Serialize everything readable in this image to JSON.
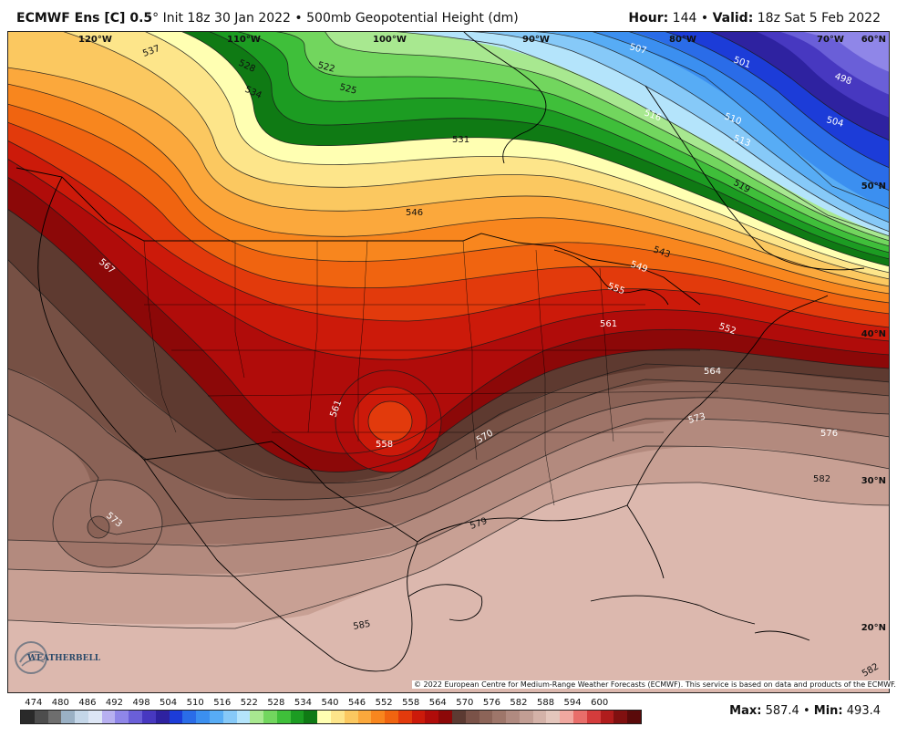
{
  "header": {
    "model": "ECMWF Ens [C] 0.5",
    "degree_mark": "°",
    "init": "Init 18z 30 Jan 2022",
    "separator": "•",
    "product": "500mb Geopotential Height (dm)",
    "hour_label": "Hour:",
    "hour_value": "144",
    "valid_label": "Valid:",
    "valid_value": "18z Sat 5 Feb 2022"
  },
  "lon_labels": [
    "120°W",
    "110°W",
    "100°W",
    "90°W",
    "80°W",
    "70°W"
  ],
  "lat_labels": [
    "60°N",
    "50°N",
    "40°N",
    "30°N",
    "20°N"
  ],
  "contour_labels": [
    "537",
    "528",
    "534",
    "522",
    "525",
    "507",
    "501",
    "498",
    "504",
    "510",
    "516",
    "513",
    "519",
    "531",
    "546",
    "543",
    "549",
    "555",
    "561",
    "567",
    "561",
    "558",
    "570",
    "573",
    "576",
    "582",
    "579",
    "585",
    "564",
    "552",
    "573",
    "582"
  ],
  "legend": {
    "values": [
      "474",
      "480",
      "486",
      "492",
      "498",
      "504",
      "510",
      "516",
      "522",
      "528",
      "534",
      "540",
      "546",
      "552",
      "558",
      "564",
      "570",
      "576",
      "582",
      "588",
      "594",
      "600"
    ],
    "colors": [
      "#2a2a2a",
      "#4d4d4d",
      "#6e6e6e",
      "#9ab0c4",
      "#c4d6e8",
      "#dde6f5",
      "#b7b0f0",
      "#8f86e8",
      "#6a5fd8",
      "#4738c0",
      "#2e22a0",
      "#1c3cd8",
      "#2a6ce8",
      "#3b8ff0",
      "#57acf5",
      "#86c9f8",
      "#b4e4fb",
      "#a8e890",
      "#72d65e",
      "#3fbf3a",
      "#1c9c22",
      "#0f7a14",
      "#ffffb2",
      "#fde58a",
      "#fbc860",
      "#fba83c",
      "#f8861e",
      "#f06410",
      "#e23a0c",
      "#cc1a0a",
      "#b00c0a",
      "#8c0808",
      "#5c3a32",
      "#7a5248",
      "#8c6458",
      "#9e766a",
      "#b08a80",
      "#c29e94",
      "#d4b2a8",
      "#e4c6bc",
      "#f0a8a0",
      "#e86e6a",
      "#d43c3c",
      "#b01c1c",
      "#801010",
      "#5a0a0a"
    ],
    "max_label": "Max:",
    "max_value": "587.4",
    "min_label": "Min:",
    "min_value": "493.4"
  },
  "copyright": "© 2022 European Centre for Medium-Range Weather Forecasts (ECMWF). This service is based on data and products of the ECMWF.",
  "logo_text": "WEATHERBELL"
}
